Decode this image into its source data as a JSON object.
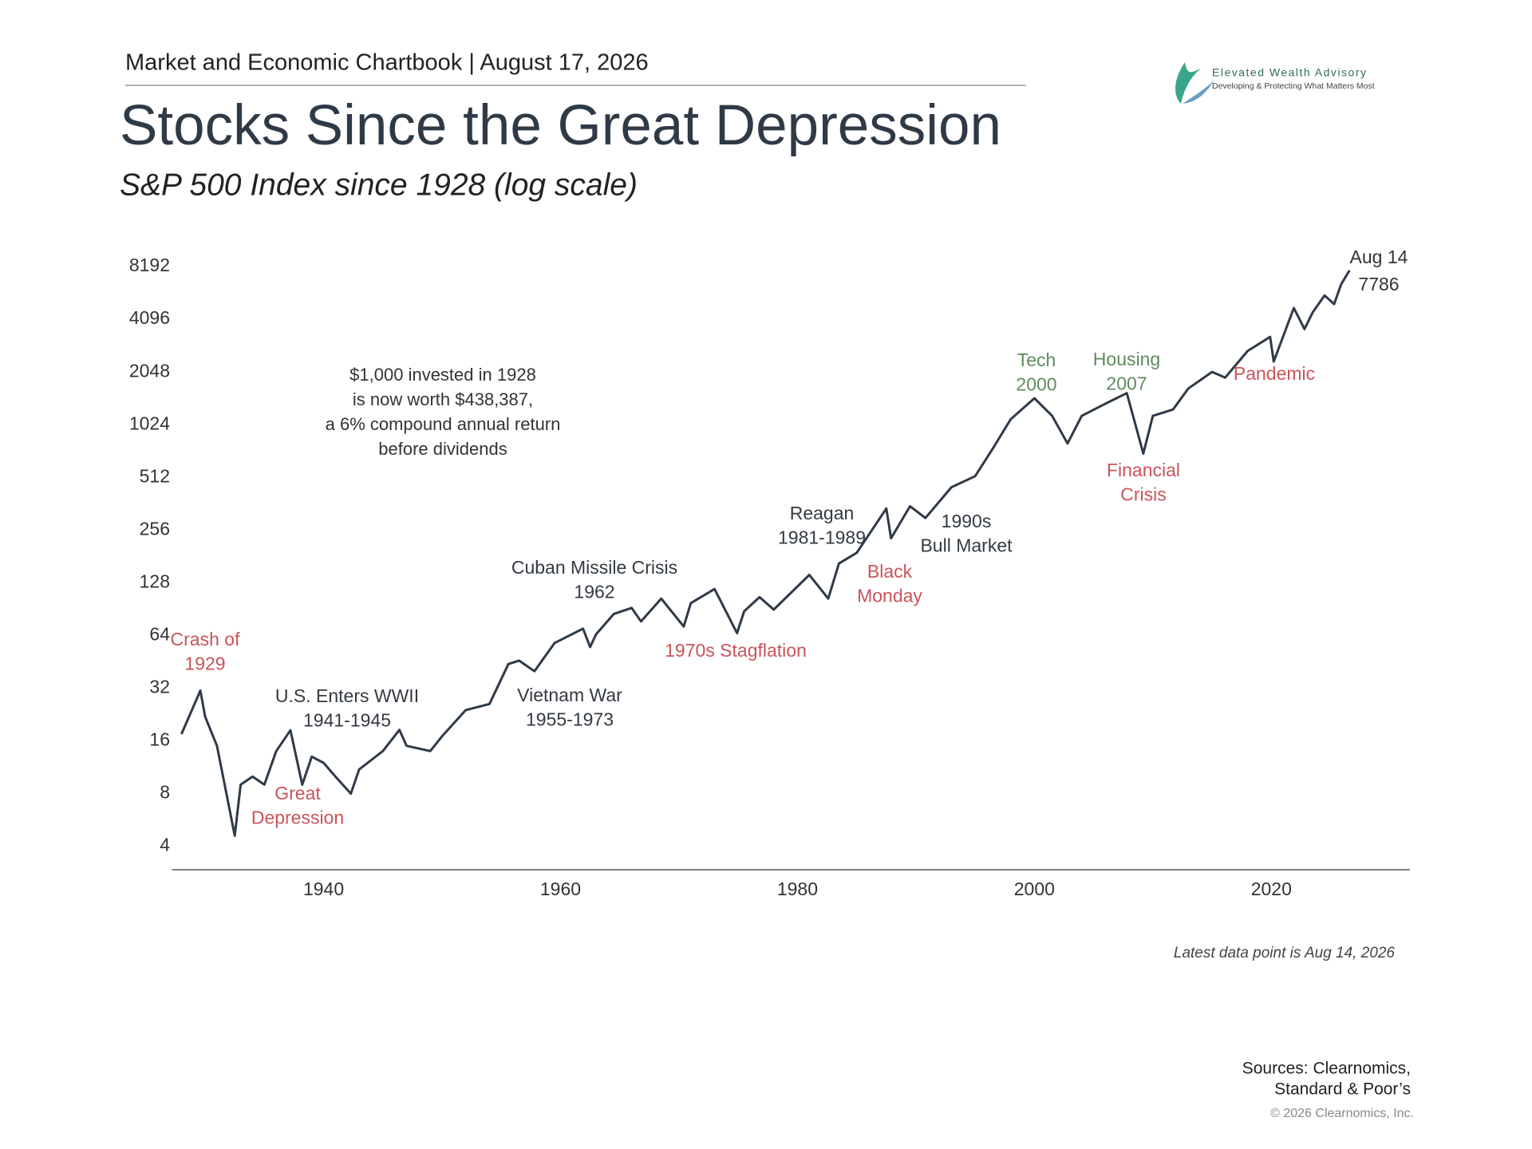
{
  "header": {
    "chartbook": "Market and Economic Chartbook | August 17, 2026",
    "logo_name": "Elevated Wealth Advisory",
    "logo_tagline": "Developing & Protecting What Matters Most"
  },
  "chart_data": {
    "type": "line",
    "title": "Stocks Since the Great Depression",
    "subtitle": "S&P 500 Index since 1928 (log scale)",
    "log_scale": true,
    "xlim": [
      1927.2,
      2031.7
    ],
    "xticks": [
      1940,
      1960,
      1980,
      2000,
      2020
    ],
    "ylim": [
      2.94,
      11000
    ],
    "yticks": [
      4,
      8,
      16,
      32,
      64,
      128,
      256,
      512,
      1024,
      2048,
      4096,
      8192
    ],
    "series": [
      {
        "name": "S&P 500",
        "color": "#2f3a47",
        "x": [
          1928,
          1929.6,
          1930,
          1931,
          1932.5,
          1933,
          1934,
          1935,
          1936,
          1937.2,
          1938.2,
          1939,
          1940,
          1941,
          1942.3,
          1943,
          1945,
          1946.4,
          1947,
          1949,
          1950,
          1952,
          1954,
          1955.6,
          1956.5,
          1957.8,
          1959.5,
          1961.9,
          1962.5,
          1963,
          1964.5,
          1966,
          1966.8,
          1968.5,
          1970.4,
          1971,
          1973,
          1974.9,
          1975.5,
          1976.8,
          1978,
          1981,
          1982.6,
          1983.5,
          1985,
          1987.5,
          1987.9,
          1989.5,
          1990.8,
          1993,
          1995,
          1996.5,
          1998,
          2000,
          2001.5,
          2002.8,
          2004,
          2006,
          2007.8,
          2009.2,
          2010,
          2011.7,
          2013,
          2015,
          2016.1,
          2018,
          2019.9,
          2020.2,
          2021.9,
          2022.8,
          2023.5,
          2024.5,
          2025.3,
          2025.9,
          2026.6
        ],
        "values": [
          17.5,
          31,
          22,
          15,
          4.6,
          9,
          10,
          9,
          14,
          18.4,
          9,
          13,
          12,
          10,
          8,
          11,
          14,
          18.5,
          15,
          14,
          17,
          24,
          26,
          44,
          46,
          40,
          58,
          70,
          55,
          65,
          85,
          92,
          77,
          104,
          72,
          98,
          118,
          66,
          88,
          106,
          90,
          142,
          104,
          165,
          190,
          340,
          230,
          350,
          300,
          450,
          520,
          750,
          1100,
          1450,
          1150,
          800,
          1150,
          1350,
          1550,
          700,
          1150,
          1250,
          1650,
          2050,
          1900,
          2700,
          3250,
          2350,
          4750,
          3600,
          4500,
          5600,
          5000,
          6500,
          7786
        ]
      }
    ],
    "end_label": "Aug 14",
    "note": [
      "$1,000 invested in 1928",
      "is now worth $438,387,",
      "a 6% compound annual return",
      "before dividends"
    ],
    "annotations": [
      {
        "lines": [
          "Crash of",
          "1929"
        ],
        "color": "#c9545a"
      },
      {
        "lines": [
          "Great",
          "Depression"
        ],
        "color": "#c9545a"
      },
      {
        "lines": [
          "U.S. Enters WWII",
          "1941-1945"
        ],
        "color": "#333a42"
      },
      {
        "lines": [
          "Vietnam War",
          "1955-1973"
        ],
        "color": "#333a42"
      },
      {
        "lines": [
          "Cuban Missile Crisis",
          "1962"
        ],
        "color": "#333a42"
      },
      {
        "lines": [
          "1970s Stagflation"
        ],
        "color": "#c9545a"
      },
      {
        "lines": [
          "Reagan",
          "1981-1989"
        ],
        "color": "#333a42"
      },
      {
        "lines": [
          "Black",
          "Monday"
        ],
        "color": "#c9545a"
      },
      {
        "lines": [
          "1990s",
          "Bull Market"
        ],
        "color": "#333a42"
      },
      {
        "lines": [
          "Tech",
          "2000"
        ],
        "color": "#5e8a5e"
      },
      {
        "lines": [
          "Housing",
          "2007"
        ],
        "color": "#5e8a5e"
      },
      {
        "lines": [
          "Financial",
          "Crisis"
        ],
        "color": "#c9545a"
      },
      {
        "lines": [
          "Pandemic"
        ],
        "color": "#c9545a"
      }
    ],
    "footnote": "Latest data point is Aug 14, 2026"
  },
  "footer": {
    "sources": [
      "Sources: Clearnomics,",
      "Standard & Poor’s"
    ],
    "copyright": "© 2026 Clearnomics, Inc."
  }
}
